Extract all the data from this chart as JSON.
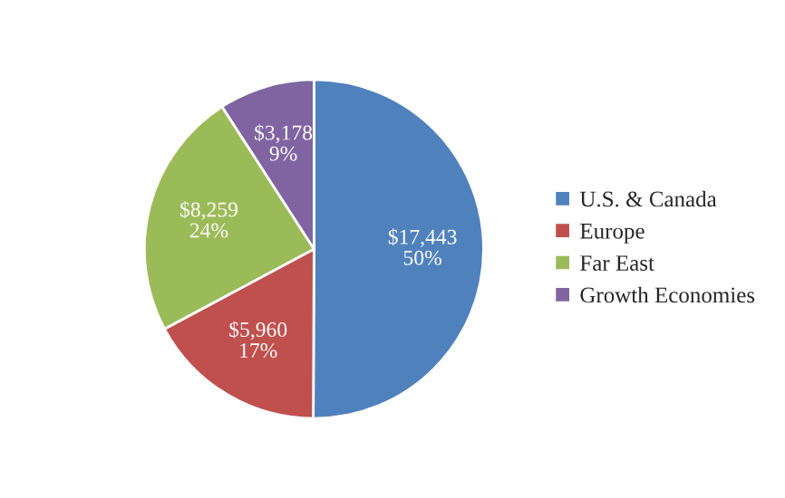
{
  "chart_data": {
    "type": "pie",
    "categories": [
      "U.S. & Canada",
      "Europe",
      "Far East",
      "Growth Economies"
    ],
    "values": [
      17443,
      5960,
      8259,
      3178
    ],
    "colors": [
      "#4f81bd",
      "#c0504d",
      "#9bbb59",
      "#8064a2"
    ],
    "value_labels": [
      "$17,443\n50%",
      "$5,960\n17%",
      "$8,259\n24%",
      "$3,178\n9%"
    ],
    "legend": "right"
  }
}
